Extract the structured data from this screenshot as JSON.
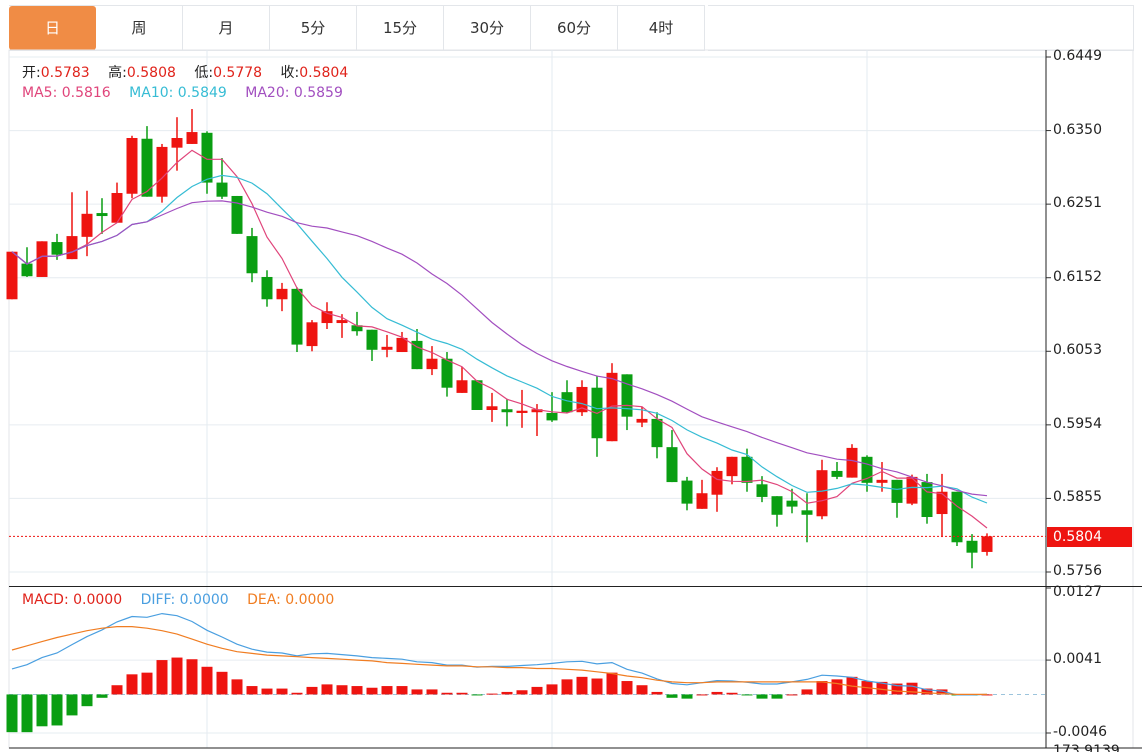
{
  "tabs": [
    {
      "label": "日",
      "active": true
    },
    {
      "label": "周",
      "active": false
    },
    {
      "label": "月",
      "active": false
    },
    {
      "label": "5分",
      "active": false
    },
    {
      "label": "15分",
      "active": false
    },
    {
      "label": "30分",
      "active": false
    },
    {
      "label": "60分",
      "active": false
    },
    {
      "label": "4时",
      "active": false
    }
  ],
  "ohlc_legend": {
    "open_label": "开:",
    "open": "0.5783",
    "high_label": "高:",
    "high": "0.5808",
    "low_label": "低:",
    "low": "0.5778",
    "close_label": "收:",
    "close": "0.5804"
  },
  "ma_legend": {
    "ma5": "MA5: 0.5816",
    "ma10": "MA10: 0.5849",
    "ma20": "MA20: 0.5859"
  },
  "macd_legend": {
    "macd": "MACD: 0.0000",
    "diff": "DIFF: 0.0000",
    "dea": "DEA: 0.0000"
  },
  "current_price": "0.5804",
  "clipped_axis_label": "173.9139",
  "colors": {
    "up": "#ee1410",
    "down": "#0a9e12",
    "ma5": "#e0457b",
    "ma10": "#36bcd4",
    "ma20": "#a24fc0",
    "diff": "#4a9fe0",
    "dea": "#f07d22",
    "accent_tab": "#f08c45"
  },
  "chart_data": [
    {
      "type": "candlestick",
      "price_axis": {
        "ylim": [
          0.5756,
          0.6449
        ],
        "ticks": [
          "0.6449",
          "0.6350",
          "0.6251",
          "0.6152",
          "0.6053",
          "0.5954",
          "0.5855",
          "0.5756"
        ]
      },
      "ma_periods": [
        5,
        10,
        20
      ],
      "ohlc": [
        [
          0.6123,
          0.6187,
          0.6123,
          0.6187
        ],
        [
          0.6171,
          0.6193,
          0.6153,
          0.6154
        ],
        [
          0.6153,
          0.6201,
          0.6153,
          0.6201
        ],
        [
          0.62,
          0.6211,
          0.6176,
          0.6183
        ],
        [
          0.6177,
          0.6267,
          0.6177,
          0.6208
        ],
        [
          0.6207,
          0.6269,
          0.6181,
          0.6238
        ],
        [
          0.6239,
          0.6259,
          0.6211,
          0.6235
        ],
        [
          0.6226,
          0.628,
          0.6226,
          0.6266
        ],
        [
          0.6265,
          0.6343,
          0.6259,
          0.634
        ],
        [
          0.6339,
          0.6356,
          0.6261,
          0.6261
        ],
        [
          0.6261,
          0.6332,
          0.6253,
          0.6328
        ],
        [
          0.6327,
          0.6368,
          0.6296,
          0.634
        ],
        [
          0.6332,
          0.6379,
          0.6332,
          0.6348
        ],
        [
          0.6347,
          0.6349,
          0.6265,
          0.628
        ],
        [
          0.628,
          0.6313,
          0.6258,
          0.6261
        ],
        [
          0.6262,
          0.6262,
          0.6211,
          0.6211
        ],
        [
          0.6208,
          0.6219,
          0.6146,
          0.6158
        ],
        [
          0.6153,
          0.6162,
          0.6113,
          0.6123
        ],
        [
          0.6123,
          0.6145,
          0.6107,
          0.6137
        ],
        [
          0.6137,
          0.6139,
          0.6052,
          0.6062
        ],
        [
          0.606,
          0.6095,
          0.6053,
          0.6092
        ],
        [
          0.6091,
          0.6119,
          0.6083,
          0.6107
        ],
        [
          0.6091,
          0.6103,
          0.6071,
          0.6095
        ],
        [
          0.6088,
          0.6106,
          0.6074,
          0.608
        ],
        [
          0.6082,
          0.6082,
          0.604,
          0.6055
        ],
        [
          0.6055,
          0.6075,
          0.6045,
          0.6059
        ],
        [
          0.6052,
          0.6079,
          0.6052,
          0.6071
        ],
        [
          0.6067,
          0.6083,
          0.6029,
          0.6029
        ],
        [
          0.6029,
          0.606,
          0.6021,
          0.6043
        ],
        [
          0.6043,
          0.6052,
          0.5992,
          0.6004
        ],
        [
          0.5997,
          0.6032,
          0.5997,
          0.6014
        ],
        [
          0.6014,
          0.6014,
          0.5974,
          0.5974
        ],
        [
          0.5974,
          0.5997,
          0.5958,
          0.5979
        ],
        [
          0.5975,
          0.5989,
          0.5952,
          0.5971
        ],
        [
          0.597,
          0.6001,
          0.595,
          0.5973
        ],
        [
          0.5971,
          0.5982,
          0.5939,
          0.5975
        ],
        [
          0.597,
          0.5998,
          0.5958,
          0.596
        ],
        [
          0.5998,
          0.6014,
          0.597,
          0.5971
        ],
        [
          0.5971,
          0.6014,
          0.5966,
          0.6005
        ],
        [
          0.6004,
          0.602,
          0.5911,
          0.5936
        ],
        [
          0.5932,
          0.6037,
          0.5932,
          0.6024
        ],
        [
          0.6022,
          0.6022,
          0.5947,
          0.5965
        ],
        [
          0.5957,
          0.5978,
          0.5951,
          0.5962
        ],
        [
          0.5962,
          0.5971,
          0.5909,
          0.5924
        ],
        [
          0.5924,
          0.5947,
          0.5877,
          0.5877
        ],
        [
          0.5879,
          0.5884,
          0.5839,
          0.5848
        ],
        [
          0.5841,
          0.588,
          0.5841,
          0.5862
        ],
        [
          0.586,
          0.5897,
          0.5837,
          0.5892
        ],
        [
          0.5885,
          0.5911,
          0.5874,
          0.5911
        ],
        [
          0.5911,
          0.5922,
          0.5864,
          0.5876
        ],
        [
          0.5874,
          0.5885,
          0.585,
          0.5857
        ],
        [
          0.5858,
          0.5858,
          0.5817,
          0.5833
        ],
        [
          0.5852,
          0.5868,
          0.5835,
          0.5844
        ],
        [
          0.5839,
          0.5862,
          0.5796,
          0.5833
        ],
        [
          0.5831,
          0.5907,
          0.5827,
          0.5893
        ],
        [
          0.5892,
          0.5904,
          0.5881,
          0.5884
        ],
        [
          0.5883,
          0.5928,
          0.5883,
          0.5923
        ],
        [
          0.5911,
          0.5913,
          0.5864,
          0.5876
        ],
        [
          0.5876,
          0.5904,
          0.5864,
          0.588
        ],
        [
          0.588,
          0.588,
          0.5829,
          0.5849
        ],
        [
          0.5848,
          0.5887,
          0.5846,
          0.5884
        ],
        [
          0.5877,
          0.5888,
          0.5821,
          0.583
        ],
        [
          0.5834,
          0.5888,
          0.5803,
          0.5864
        ],
        [
          0.5864,
          0.5864,
          0.5791,
          0.5796
        ],
        [
          0.5798,
          0.5807,
          0.5761,
          0.5782
        ],
        [
          0.5783,
          0.5808,
          0.5778,
          0.5804
        ]
      ]
    },
    {
      "type": "bar",
      "macd_axis": {
        "ylim": [
          -0.0046,
          0.0127
        ],
        "ticks": [
          "0.0127",
          "0.0041",
          "-0.0046"
        ]
      },
      "macd": [
        -0.0045,
        -0.0045,
        -0.0038,
        -0.0037,
        -0.0025,
        -0.0014,
        -0.0004,
        0.0011,
        0.0024,
        0.0026,
        0.0041,
        0.0044,
        0.0042,
        0.0033,
        0.0027,
        0.0018,
        0.001,
        0.0007,
        0.0007,
        0.0002,
        0.0009,
        0.0012,
        0.0011,
        0.001,
        0.0008,
        0.001,
        0.001,
        0.0006,
        0.0006,
        0.0002,
        0.0002,
        -0.0001,
        0.0001,
        0.0003,
        0.0005,
        0.0009,
        0.0012,
        0.0018,
        0.0021,
        0.0019,
        0.0026,
        0.0016,
        0.0011,
        0.0003,
        -0.0004,
        -0.0005,
        0.0,
        0.0003,
        0.0002,
        -0.0001,
        -0.0005,
        -0.0005,
        0.0,
        0.0006,
        0.0016,
        0.0018,
        0.0021,
        0.0016,
        0.0015,
        0.0013,
        0.0014,
        0.0007,
        0.0006,
        -0.0001,
        -0.0001,
        0.0
      ],
      "dea": [
        0.0053,
        0.0058,
        0.0063,
        0.0068,
        0.0072,
        0.0076,
        0.0079,
        0.0081,
        0.0081,
        0.0079,
        0.0076,
        0.0072,
        0.0066,
        0.006,
        0.0055,
        0.0051,
        0.0049,
        0.0047,
        0.0046,
        0.0045,
        0.0044,
        0.0043,
        0.0042,
        0.0041,
        0.004,
        0.0038,
        0.0037,
        0.0036,
        0.0035,
        0.0034,
        0.0034,
        0.0033,
        0.0033,
        0.0032,
        0.0032,
        0.0031,
        0.0031,
        0.003,
        0.0029,
        0.0027,
        0.0025,
        0.0022,
        0.002,
        0.0017,
        0.0015,
        0.0014,
        0.0014,
        0.0015,
        0.0015,
        0.0015,
        0.0015,
        0.0015,
        0.0015,
        0.0015,
        0.0015,
        0.0013,
        0.001,
        0.0008,
        0.0006,
        0.0004,
        0.0003,
        0.0002,
        0.0001,
        0.0,
        0.0,
        0.0
      ]
    }
  ]
}
